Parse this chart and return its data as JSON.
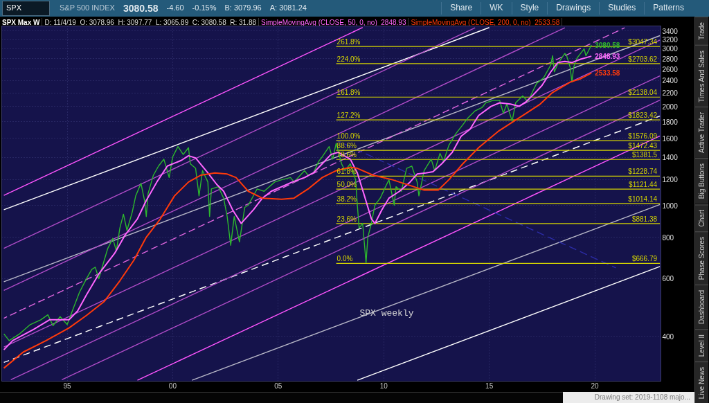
{
  "chart_data": [
    {
      "type": "other",
      "annotations": [
        "SPX",
        "S&P 500 INDEX",
        "3080.58",
        "-4.60",
        "-0.15%",
        "B: 3079.96",
        "A: 3081.24",
        "Share",
        "WK",
        "Style",
        "Drawings",
        "Studies",
        "Patterns"
      ]
    },
    {
      "type": "line",
      "title": "SPX Max W",
      "subtitle": "D: 11/4/19  O: 3078.96  H: 3097.77  L: 3065.89  C: 3080.58  R: 31.88",
      "annotations": [
        "SPX weekly"
      ],
      "xlim": [
        "1991-11-25",
        "2023-02-18"
      ],
      "xticks": [
        {
          "value": "1995",
          "label": "95"
        },
        {
          "value": "2000",
          "label": "00"
        },
        {
          "value": "2005",
          "label": "05"
        },
        {
          "value": "2010",
          "label": "10"
        },
        {
          "value": "2015",
          "label": "15"
        },
        {
          "value": "2020",
          "label": "20"
        }
      ],
      "ylim": [
        292,
        3520
      ],
      "yticks": [
        400,
        600,
        800,
        1000,
        1200,
        1400,
        1600,
        1800,
        2000,
        2200,
        2400,
        2600,
        2800,
        3000,
        3200,
        3400
      ],
      "log": "y",
      "grid": true,
      "legend": "top",
      "series": [
        {
          "color": "#ff55ff",
          "x": [
            "1992-01",
            "2009-01"
          ],
          "values": [
            1074,
            3482
          ]
        },
        {
          "color": "#ffffff",
          "x": [
            "1992-01",
            "2015-01"
          ],
          "values": [
            971,
            3482
          ]
        },
        {
          "color": "#b04cc8",
          "x": [
            "1992-01",
            "2014-05"
          ],
          "values": [
            741,
            3477
          ]
        },
        {
          "color": "#b8b8c8",
          "x": [
            "1992-01",
            "2023-02"
          ],
          "values": [
            586,
            3289
          ]
        },
        {
          "color": "#b04cc8",
          "x": [
            "1992-01",
            "2018-08"
          ],
          "values": [
            552,
            3475
          ]
        },
        {
          "color": "#e066e0",
          "line_style": "dashed",
          "x": [
            "1992-01",
            "2021-06"
          ],
          "values": [
            454,
            3475
          ]
        },
        {
          "color": "#b04cc8",
          "x": [
            "1992-01",
            "2023-02"
          ],
          "values": [
            371,
            3188
          ]
        },
        {
          "color": "#ffffff",
          "line_style": "dashed",
          "x": [
            "1992-01",
            "2023-02"
          ],
          "values": [
            333,
            1872
          ]
        },
        {
          "color": "#b04cc8",
          "x": [
            "1992-05",
            "2023-02"
          ],
          "values": [
            295,
            2480
          ]
        },
        {
          "color": "#b04cc8",
          "x": [
            "1994-10",
            "2023-02"
          ],
          "values": [
            295,
            2094
          ]
        },
        {
          "color": "#ff55ff",
          "x": [
            "1998-05",
            "2023-02"
          ],
          "values": [
            294,
            1629
          ]
        },
        {
          "color": "#b8b8c8",
          "x": [
            "2000-12",
            "2023-02"
          ],
          "values": [
            294,
            1007
          ]
        },
        {
          "color": "#ffffff",
          "x": [
            "2008-10",
            "2023-02"
          ],
          "values": [
            294,
            652
          ]
        },
        {
          "color": "#2c2ca8",
          "line_style": "dashed",
          "x": [
            "2007-10",
            "2021-01"
          ],
          "values": [
            1580,
            646
          ]
        },
        {
          "name": "261.8%",
          "color": "#d6d600",
          "x": [
            "2007-10",
            "2023-02"
          ],
          "values": [
            3047.34,
            3047.34
          ],
          "value_labels": [
            null,
            "$3047.34"
          ]
        },
        {
          "name": "224.0%",
          "color": "#d6d600",
          "x": [
            "2007-10",
            "2023-02"
          ],
          "values": [
            2703.62,
            2703.62
          ],
          "value_labels": [
            null,
            "$2703.62"
          ]
        },
        {
          "name": "161.8%",
          "color": "#d6d600",
          "x": [
            "2007-10",
            "2023-02"
          ],
          "values": [
            2138.04,
            2138.04
          ],
          "value_labels": [
            null,
            "$2138.04"
          ]
        },
        {
          "name": "127.2%",
          "color": "#d6d600",
          "x": [
            "2007-10",
            "2023-02"
          ],
          "values": [
            1823.42,
            1823.42
          ],
          "value_labels": [
            null,
            "$1823.42"
          ]
        },
        {
          "name": "100.0%",
          "color": "#d6d600",
          "x": [
            "2007-10",
            "2023-02"
          ],
          "values": [
            1576.09,
            1576.09
          ],
          "value_labels": [
            null,
            "$1576.09"
          ]
        },
        {
          "name": "88.6%",
          "color": "#d6d600",
          "x": [
            "2007-10",
            "2023-02"
          ],
          "values": [
            1472.43,
            1472.43
          ],
          "value_labels": [
            null,
            "$1472.43"
          ]
        },
        {
          "name": "78.6%",
          "color": "#d6d600",
          "x": [
            "2007-10",
            "2023-02"
          ],
          "values": [
            1381.5,
            1381.5
          ],
          "value_labels": [
            null,
            "$1381.5"
          ]
        },
        {
          "name": "61.8%",
          "color": "#d6d600",
          "x": [
            "2007-10",
            "2023-02"
          ],
          "values": [
            1228.74,
            1228.74
          ],
          "value_labels": [
            null,
            "$1228.74"
          ]
        },
        {
          "name": "50.0%",
          "color": "#d6d600",
          "x": [
            "2007-10",
            "2023-02"
          ],
          "values": [
            1121.44,
            1121.44
          ],
          "value_labels": [
            null,
            "$1121.44"
          ]
        },
        {
          "name": "38.2%",
          "color": "#d6d600",
          "x": [
            "2007-10",
            "2023-02"
          ],
          "values": [
            1014.14,
            1014.14
          ],
          "value_labels": [
            null,
            "$1014.14"
          ]
        },
        {
          "name": "23.6%",
          "color": "#d6d600",
          "x": [
            "2007-10",
            "2023-02"
          ],
          "values": [
            881.38,
            881.38
          ],
          "value_labels": [
            null,
            "$881.38"
          ]
        },
        {
          "name": "0.0%",
          "color": "#d6d600",
          "x": [
            "2007-10",
            "2023-02"
          ],
          "values": [
            666.79,
            666.79
          ],
          "value_labels": [
            null,
            "$666.79"
          ]
        },
        {
          "color": "#2db82d",
          "x": [
            "1992-01",
            "1992-04",
            "1992-10",
            "1993-04",
            "1993-10",
            "1994-02",
            "1994-05",
            "1994-09",
            "1995-01",
            "1995-05",
            "1995-08",
            "1995-12",
            "1996-03",
            "1996-05",
            "1996-07",
            "1996-12",
            "1997-03",
            "1997-05",
            "1997-07",
            "1997-09",
            "1997-11",
            "1998-02",
            "1998-04",
            "1998-07",
            "1998-09",
            "1998-10",
            "1998-11",
            "1999-02",
            "1999-05",
            "1999-08",
            "1999-11",
            "2000-01",
            "2000-04",
            "2000-07",
            "2000-10",
            "2000-11",
            "2001-02",
            "2001-04",
            "2001-06",
            "2001-09",
            "2001-10",
            "2001-11",
            "2002-03",
            "2002-06",
            "2002-08",
            "2002-10",
            "2002-12",
            "2003-03",
            "2003-06",
            "2003-08",
            "2004-01",
            "2004-05",
            "2004-11",
            "2005-03",
            "2005-08",
            "2005-10",
            "2006-04",
            "2006-06",
            "2006-09",
            "2006-12",
            "2007-02",
            "2007-06",
            "2007-08",
            "2007-10",
            "2008-01",
            "2008-03",
            "2008-06",
            "2008-09",
            "2008-10",
            "2008-11",
            "2009-01",
            "2009-03",
            "2009-04",
            "2009-06",
            "2009-08",
            "2009-11",
            "2010-02",
            "2010-04",
            "2010-07",
            "2010-08",
            "2010-11",
            "2011-02",
            "2011-05",
            "2011-08",
            "2011-09",
            "2011-12",
            "2012-04",
            "2012-06",
            "2012-09",
            "2012-11",
            "2013-02",
            "2013-06",
            "2013-10",
            "2014-01",
            "2014-05",
            "2014-09",
            "2014-11",
            "2015-03",
            "2015-07",
            "2015-09",
            "2015-11",
            "2016-02",
            "2016-04",
            "2016-08",
            "2016-11",
            "2017-02",
            "2017-04",
            "2017-08",
            "2017-12",
            "2018-01",
            "2018-02",
            "2018-04",
            "2018-08",
            "2018-09",
            "2018-11",
            "2018-12",
            "2019-01",
            "2019-03",
            "2019-05",
            "2019-07",
            "2019-08",
            "2019-11-04"
          ],
          "values": [
            407,
            388,
            407,
            434,
            449,
            465,
            431,
            459,
            434,
            494,
            544,
            599,
            639,
            649,
            599,
            738,
            794,
            727,
            854,
            941,
            840,
            956,
            1070,
            1169,
            1036,
            926,
            1087,
            1237,
            1319,
            1384,
            1217,
            1407,
            1512,
            1430,
            1500,
            1340,
            1298,
            1070,
            1277,
            1179,
            926,
            1123,
            1141,
            1053,
            926,
            757,
            926,
            775,
            987,
            1003,
            1123,
            1105,
            1179,
            1198,
            1217,
            1179,
            1277,
            1237,
            1257,
            1362,
            1407,
            1512,
            1384,
            1549,
            1340,
            1277,
            1340,
            1198,
            1003,
            854,
            882,
            670,
            801,
            882,
            1003,
            1053,
            1141,
            1198,
            1003,
            1141,
            1105,
            1298,
            1319,
            1179,
            1070,
            1277,
            1384,
            1277,
            1441,
            1362,
            1525,
            1654,
            1762,
            1851,
            1942,
            1990,
            2054,
            2088,
            2088,
            1909,
            2036,
            1805,
            2054,
            2156,
            2071,
            2244,
            2354,
            2450,
            2679,
            2857,
            2552,
            2700,
            2904,
            2857,
            2636,
            2374,
            2636,
            2812,
            2904,
            2998,
            2857,
            3080.58
          ],
          "value_labels": [
            null,
            null,
            null,
            null,
            null,
            null,
            null,
            null,
            null,
            null,
            null,
            null,
            null,
            null,
            null,
            null,
            null,
            null,
            null,
            null,
            null,
            null,
            null,
            null,
            null,
            null,
            null,
            null,
            null,
            null,
            null,
            null,
            null,
            null,
            null,
            null,
            null,
            null,
            null,
            null,
            null,
            null,
            null,
            null,
            null,
            null,
            null,
            null,
            null,
            null,
            null,
            null,
            null,
            null,
            null,
            null,
            null,
            null,
            null,
            null,
            null,
            null,
            null,
            null,
            null,
            null,
            null,
            null,
            null,
            null,
            null,
            null,
            null,
            null,
            null,
            null,
            null,
            null,
            null,
            null,
            null,
            null,
            null,
            null,
            null,
            null,
            null,
            null,
            null,
            null,
            null,
            null,
            null,
            null,
            null,
            null,
            null,
            null,
            null,
            null,
            null,
            null,
            null,
            null,
            null,
            null,
            null,
            null,
            null,
            null,
            null,
            null,
            null,
            null,
            null,
            null,
            null,
            null,
            null,
            null,
            null,
            "3080.58"
          ]
        },
        {
          "name": "SimpleMovingAvg (CLOSE, 50, 0, no)",
          "color": "#ff66ff",
          "x": [
            "1992-01",
            "1992-06",
            "1993-06",
            "1994-03",
            "1995-02",
            "1995-07",
            "1995-12",
            "1996-07",
            "1997-04",
            "1997-10",
            "1998-05",
            "1998-10",
            "1999-04",
            "1999-10",
            "2000-06",
            "2000-10",
            "2001-02",
            "2001-09",
            "2002-02",
            "2002-06",
            "2002-11",
            "2003-04",
            "2003-11",
            "2004-04",
            "2004-09",
            "2005-03",
            "2005-09",
            "2006-04",
            "2006-09",
            "2007-02",
            "2007-07",
            "2007-11",
            "2008-06",
            "2008-10",
            "2009-02",
            "2009-06",
            "2009-08",
            "2009-12",
            "2010-04",
            "2010-10",
            "2011-04",
            "2011-08",
            "2012-01",
            "2012-05",
            "2012-10",
            "2013-04",
            "2013-09",
            "2014-02",
            "2014-07",
            "2015-02",
            "2015-07",
            "2016-01",
            "2016-06",
            "2016-10",
            "2017-02",
            "2017-07",
            "2017-12",
            "2018-04",
            "2018-08",
            "2018-12",
            "2019-05",
            "2019-11-04"
          ],
          "values": [
            364,
            388,
            420,
            449,
            449,
            478,
            535,
            619,
            715,
            814,
            911,
            1036,
            1179,
            1319,
            1373,
            1418,
            1396,
            1257,
            1160,
            1105,
            972,
            882,
            972,
            1053,
            1105,
            1141,
            1179,
            1217,
            1257,
            1340,
            1430,
            1452,
            1384,
            1257,
            1070,
            911,
            882,
            972,
            1053,
            1105,
            1179,
            1247,
            1257,
            1267,
            1340,
            1452,
            1625,
            1706,
            1880,
            2004,
            2054,
            2036,
            2004,
            2071,
            2173,
            2319,
            2552,
            2724,
            2746,
            2724,
            2788,
            2848.93
          ],
          "value_labels": [
            null,
            null,
            null,
            null,
            null,
            null,
            null,
            null,
            null,
            null,
            null,
            null,
            null,
            null,
            null,
            null,
            null,
            null,
            null,
            null,
            null,
            null,
            null,
            null,
            null,
            null,
            null,
            null,
            null,
            null,
            null,
            null,
            null,
            null,
            null,
            null,
            null,
            null,
            null,
            null,
            null,
            null,
            null,
            null,
            null,
            null,
            null,
            null,
            null,
            null,
            null,
            null,
            null,
            null,
            null,
            null,
            null,
            null,
            null,
            null,
            null,
            "2848.93"
          ]
        },
        {
          "name": "SimpleMovingAvg (CLOSE, 200, 0, no)",
          "color": "#ff3a0a",
          "x": [
            "1992-01",
            "1992-12",
            "1994-01",
            "1995-02",
            "1995-12",
            "1996-10",
            "1997-07",
            "1998-03",
            "1998-10",
            "1999-06",
            "2000-02",
            "2000-10",
            "2001-05",
            "2002-01",
            "2002-08",
            "2003-01",
            "2003-08",
            "2004-04",
            "2005-03",
            "2005-10",
            "2006-06",
            "2007-02",
            "2007-10",
            "2008-06",
            "2008-10",
            "2009-07",
            "2010-06",
            "2011-04",
            "2011-12",
            "2012-08",
            "2013-02",
            "2013-10",
            "2014-07",
            "2015-06",
            "2016-02",
            "2016-10",
            "2017-06",
            "2018-01",
            "2018-11",
            "2019-05",
            "2019-11-04"
          ],
          "values": [
            320,
            358,
            388,
            424,
            463,
            510,
            590,
            682,
            801,
            911,
            1070,
            1179,
            1237,
            1257,
            1247,
            1217,
            1105,
            1053,
            1045,
            1053,
            1123,
            1217,
            1277,
            1308,
            1298,
            1237,
            1198,
            1151,
            1114,
            1114,
            1198,
            1340,
            1500,
            1680,
            1792,
            1909,
            2036,
            2208,
            2374,
            2432,
            2533.58
          ],
          "value_labels": [
            null,
            null,
            null,
            null,
            null,
            null,
            null,
            null,
            null,
            null,
            null,
            null,
            null,
            null,
            null,
            null,
            null,
            null,
            null,
            null,
            null,
            null,
            null,
            null,
            null,
            null,
            null,
            null,
            null,
            null,
            null,
            null,
            null,
            null,
            null,
            null,
            null,
            null,
            null,
            null,
            "2533.58"
          ]
        }
      ]
    },
    {
      "type": "other",
      "annotations": [
        "Trade",
        "Times And Sales",
        "Active Trader",
        "Big Buttons",
        "Chart",
        "Phase Scores",
        "Dashboard",
        "Level II",
        "Live News"
      ]
    },
    {
      "type": "other",
      "annotations": [
        "Drawing set: 2019-1108 majo..."
      ]
    }
  ]
}
